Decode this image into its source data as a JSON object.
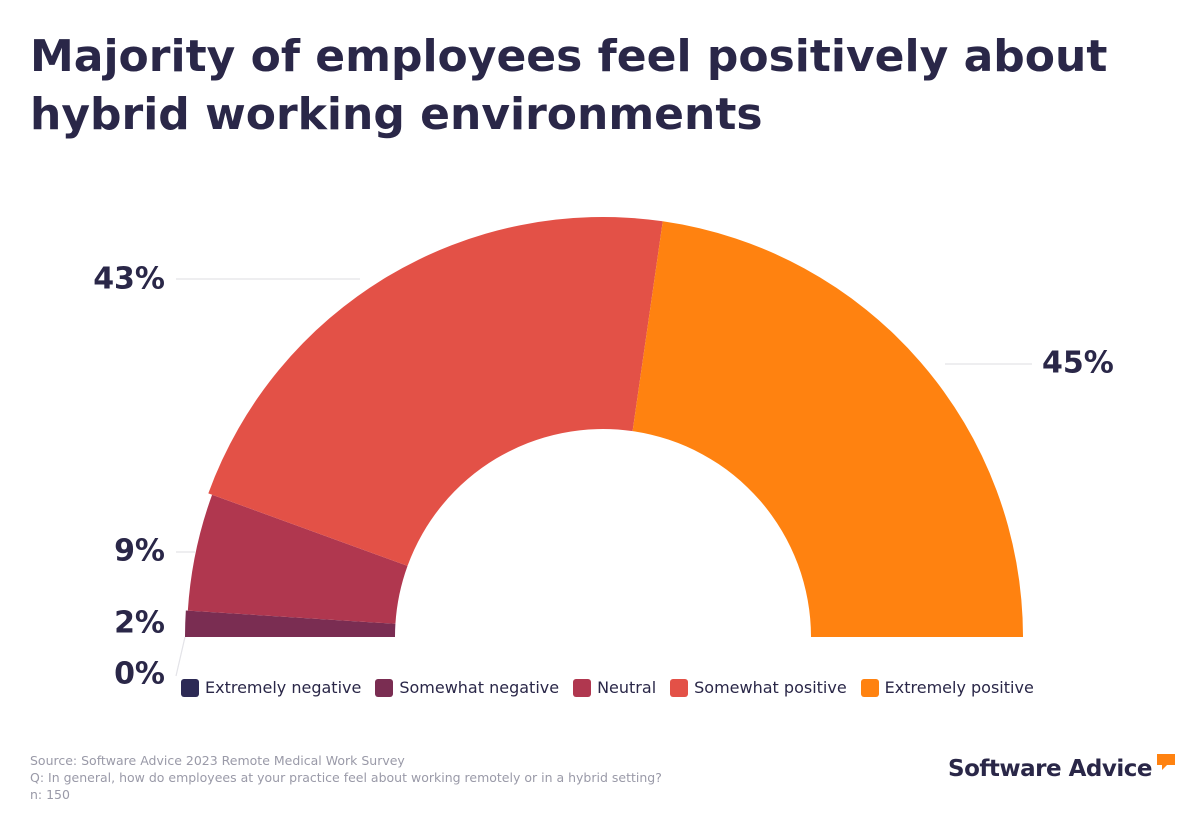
{
  "title": {
    "line1": "Majority of employees feel positively about",
    "line2": "hybrid working environments"
  },
  "chart_data": {
    "type": "pie",
    "variant": "semi-donut",
    "title": "Majority of employees feel positively about hybrid working environments",
    "categories": [
      "Extremely negative",
      "Somewhat negative",
      "Neutral",
      "Somewhat positive",
      "Extremely positive"
    ],
    "values": [
      0,
      2,
      9,
      43,
      45
    ],
    "labels": [
      "0%",
      "2%",
      "9%",
      "43%",
      "45%"
    ],
    "colors": [
      "#2d2a55",
      "#7a2d52",
      "#b0374f",
      "#e35147",
      "#ff8210"
    ],
    "legend_position": "bottom"
  },
  "footer": {
    "source": "Source: Software Advice 2023 Remote Medical Work Survey",
    "question": "Q: In general, how do employees at your practice feel about working remotely or in a hybrid setting?",
    "n": "n: 150"
  },
  "brand": {
    "name": "Software Advice",
    "accent_color": "#ff8210"
  }
}
